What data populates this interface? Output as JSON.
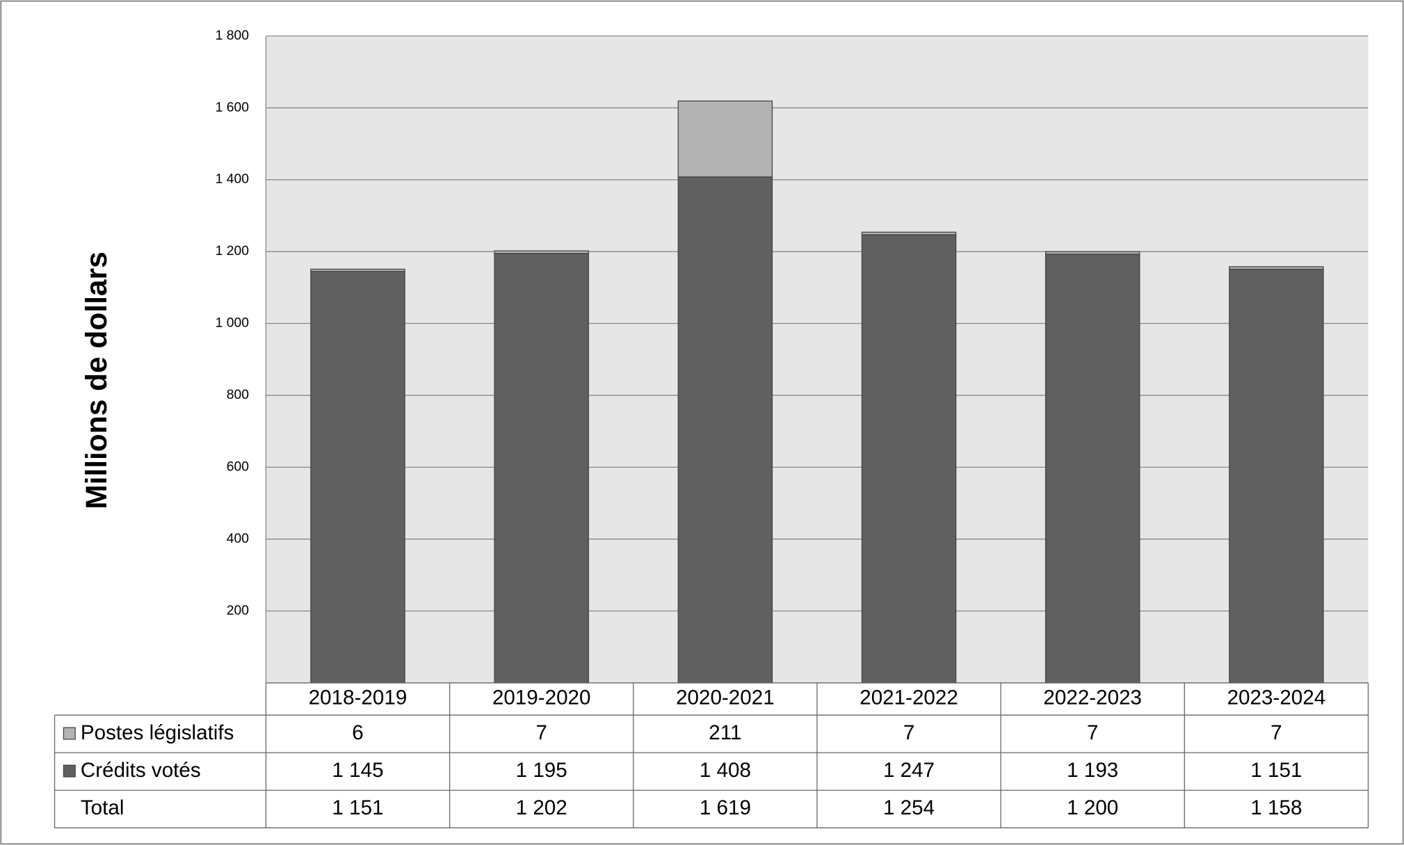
{
  "chart_data": {
    "type": "stacked-bar",
    "ylabel": "Millions de dollars",
    "categories": [
      "2018-2019",
      "2019-2020",
      "2020-2021",
      "2021-2022",
      "2022-2023",
      "2023-2024"
    ],
    "series": [
      {
        "name": "Crédits votés",
        "color": "#606060",
        "values": [
          1145,
          1195,
          1408,
          1247,
          1193,
          1151
        ],
        "value_labels": [
          "1 145",
          "1 195",
          "1 408",
          "1 247",
          "1 193",
          "1 151"
        ]
      },
      {
        "name": "Postes législatifs",
        "color": "#b3b3b3",
        "values": [
          6,
          7,
          211,
          7,
          7,
          7
        ]
      }
    ],
    "total": {
      "name": "Total",
      "labels": [
        "1 151",
        "1 202",
        "1 619",
        "1 254",
        "1 200",
        "1 158"
      ]
    },
    "ylim": [
      0,
      1800
    ],
    "yticks": [
      200,
      400,
      600,
      800,
      {
        "value": 1000,
        "label": "1 000"
      },
      {
        "value": 1200,
        "label": "1 200"
      },
      {
        "value": 1400,
        "label": "1 400"
      },
      {
        "value": 1600,
        "label": "1 600"
      },
      {
        "value": 1800,
        "label": "1 800"
      }
    ],
    "grid": true
  }
}
